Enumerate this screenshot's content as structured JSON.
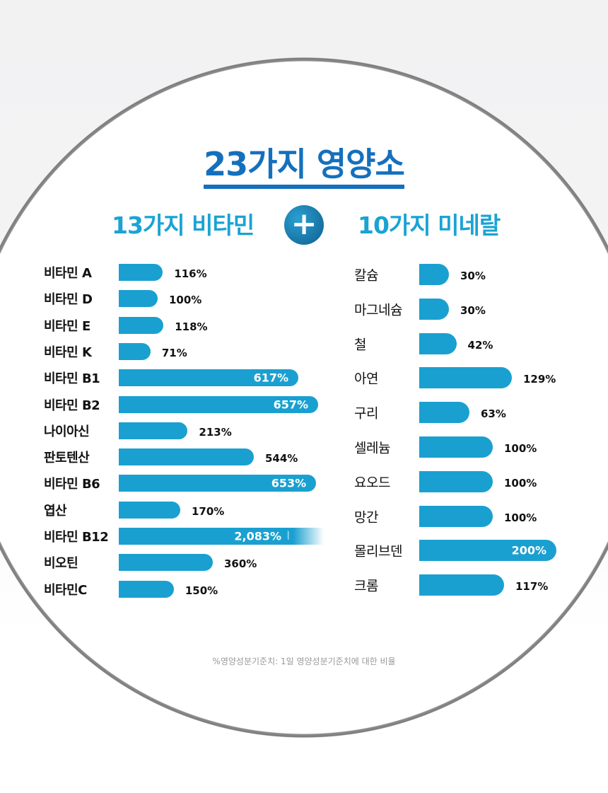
{
  "title": "23가지 영양소",
  "plus_icon": "plus-icon",
  "chart_data": [
    {
      "type": "bar",
      "orientation": "horizontal",
      "title": "13가지 비타민",
      "unit": "%",
      "categories": [
        "비타민 A",
        "비타민 D",
        "비타민 E",
        "비타민 K",
        "비타민 B1",
        "비타민 B2",
        "나이아신",
        "판토텐산",
        "비타민 B6",
        "엽산",
        "비타민 B12",
        "비오틴",
        "비타민C"
      ],
      "values": [
        116,
        100,
        118,
        71,
        617,
        657,
        213,
        544,
        653,
        170,
        2083,
        360,
        150
      ],
      "labels": [
        "116%",
        "100%",
        "118%",
        "71%",
        "617%",
        "657%",
        "213%",
        "544%",
        "653%",
        "170%",
        "2,083%",
        "360%",
        "150%"
      ],
      "truncated": [
        "비타민 B12"
      ]
    },
    {
      "type": "bar",
      "orientation": "horizontal",
      "title": "10가지 미네랄",
      "unit": "%",
      "categories": [
        "칼슘",
        "마그네슘",
        "철",
        "아연",
        "구리",
        "셀레늄",
        "요오드",
        "망간",
        "몰리브덴",
        "크롬"
      ],
      "values": [
        30,
        30,
        42,
        129,
        63,
        100,
        100,
        100,
        200,
        117
      ],
      "labels": [
        "30%",
        "30%",
        "42%",
        "129%",
        "63%",
        "100%",
        "100%",
        "100%",
        "200%",
        "117%"
      ]
    }
  ],
  "footnote": "%영양성분기준치: 1일 영양성분기준치에 대한 비율",
  "colors": {
    "bar": "#1aa0d0",
    "title": "#1470bd",
    "subtitle": "#1aa3d3"
  }
}
